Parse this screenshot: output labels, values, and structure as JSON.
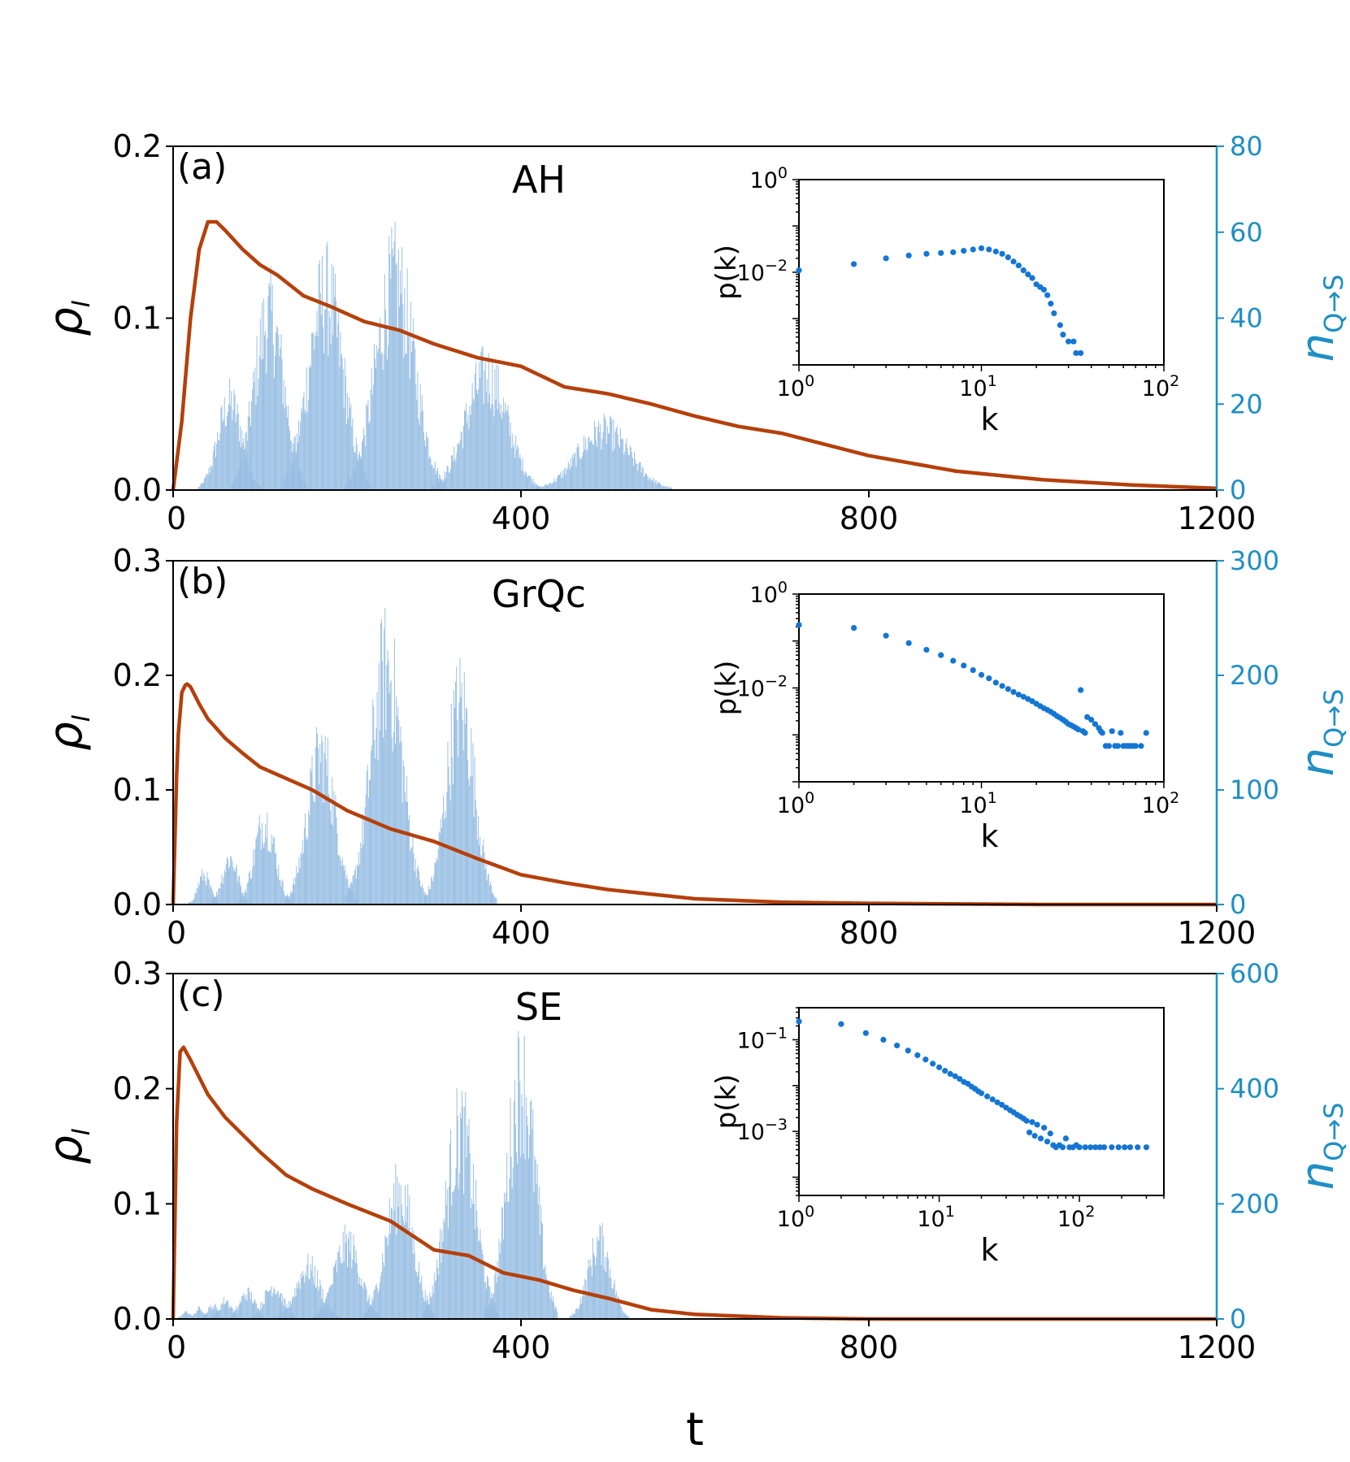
{
  "figure": {
    "xlabel": "t",
    "x_ticks": [
      0,
      400,
      800,
      1200
    ],
    "xlim": [
      0,
      1200
    ]
  },
  "colors": {
    "curve": "#b5400b",
    "bars": "#8db8e0",
    "right_axis": "#1f8fc4",
    "inset_points": "#1476d4"
  },
  "chart_data": [
    {
      "type": "bar",
      "panel_label": "(a)",
      "network": "AH",
      "ylabel_left": "ρ_I",
      "ylabel_right": "n_Q→S",
      "ylim_left": [
        0,
        0.2
      ],
      "yticks_left": [
        "0.0",
        "0.1",
        "0.2"
      ],
      "ylim_right": [
        0,
        80
      ],
      "yticks_right": [
        "0",
        "20",
        "40",
        "60",
        "80"
      ],
      "rho_I": {
        "t": [
          0,
          10,
          20,
          30,
          40,
          50,
          60,
          80,
          100,
          120,
          150,
          180,
          220,
          260,
          300,
          350,
          400,
          450,
          500,
          550,
          600,
          650,
          700,
          800,
          900,
          1000,
          1100,
          1200
        ],
        "value": [
          0.0,
          0.04,
          0.1,
          0.14,
          0.156,
          0.156,
          0.151,
          0.14,
          0.131,
          0.125,
          0.113,
          0.107,
          0.098,
          0.093,
          0.085,
          0.077,
          0.072,
          0.06,
          0.056,
          0.05,
          0.043,
          0.037,
          0.033,
          0.02,
          0.011,
          0.006,
          0.003,
          0.001
        ]
      },
      "n_QS_bursts": [
        {
          "center": 65,
          "width": 14,
          "peak": 25
        },
        {
          "center": 110,
          "width": 17,
          "peak": 50
        },
        {
          "center": 175,
          "width": 20,
          "peak": 56
        },
        {
          "center": 255,
          "width": 22,
          "peak": 60
        },
        {
          "center": 360,
          "width": 24,
          "peak": 33
        },
        {
          "center": 495,
          "width": 30,
          "peak": 17
        }
      ],
      "inset": {
        "type": "scatter",
        "xlabel": "k",
        "ylabel": "p(k)",
        "log_x": true,
        "log_y": true,
        "xlim": [
          1,
          100
        ],
        "ylim": [
          0.0001,
          1
        ],
        "x_ticks": [
          {
            "base": "10",
            "exp": "0"
          },
          {
            "base": "10",
            "exp": "1"
          },
          {
            "base": "10",
            "exp": "2"
          }
        ],
        "y_ticks": [
          {
            "base": "10",
            "exp": "0",
            "value": 1
          },
          {
            "base": "10",
            "exp": "−2",
            "value": 0.01
          }
        ],
        "k": [
          1,
          2,
          3,
          4,
          5,
          6,
          7,
          8,
          9,
          10,
          11,
          12,
          13,
          14,
          15,
          16,
          17,
          18,
          19,
          20,
          21,
          22,
          23,
          24,
          25,
          27,
          28,
          30,
          32,
          33,
          35
        ],
        "p": [
          0.011,
          0.015,
          0.02,
          0.023,
          0.025,
          0.026,
          0.027,
          0.029,
          0.031,
          0.033,
          0.031,
          0.028,
          0.025,
          0.021,
          0.017,
          0.014,
          0.011,
          0.009,
          0.0075,
          0.0055,
          0.0048,
          0.0042,
          0.0032,
          0.0021,
          0.0013,
          0.00072,
          0.00045,
          0.00032,
          0.00032,
          0.00018,
          0.00018
        ]
      }
    },
    {
      "type": "bar",
      "panel_label": "(b)",
      "network": "GrQc",
      "ylabel_left": "ρ_I",
      "ylabel_right": "n_Q→S",
      "ylim_left": [
        0,
        0.3
      ],
      "yticks_left": [
        "0.0",
        "0.1",
        "0.2",
        "0.3"
      ],
      "ylim_right": [
        0,
        300
      ],
      "yticks_right": [
        "0",
        "100",
        "200",
        "300"
      ],
      "rho_I": {
        "t": [
          0,
          5,
          10,
          15,
          20,
          30,
          40,
          60,
          80,
          100,
          130,
          160,
          200,
          250,
          300,
          350,
          400,
          450,
          500,
          600,
          700,
          800,
          1000,
          1200
        ],
        "value": [
          0.0,
          0.14,
          0.185,
          0.193,
          0.19,
          0.175,
          0.162,
          0.145,
          0.132,
          0.12,
          0.11,
          0.1,
          0.082,
          0.066,
          0.055,
          0.04,
          0.026,
          0.019,
          0.013,
          0.005,
          0.002,
          0.001,
          0.0,
          0.0
        ]
      },
      "n_QS_bursts": [
        {
          "center": 35,
          "width": 7,
          "peak": 32
        },
        {
          "center": 65,
          "width": 9,
          "peak": 50
        },
        {
          "center": 105,
          "width": 12,
          "peak": 90
        },
        {
          "center": 170,
          "width": 16,
          "peak": 160
        },
        {
          "center": 245,
          "width": 18,
          "peak": 255
        },
        {
          "center": 330,
          "width": 16,
          "peak": 215
        }
      ],
      "inset": {
        "type": "scatter",
        "xlabel": "k",
        "ylabel": "p(k)",
        "log_x": true,
        "log_y": true,
        "xlim": [
          1,
          100
        ],
        "ylim": [
          0.0001,
          1
        ],
        "x_ticks": [
          {
            "base": "10",
            "exp": "0"
          },
          {
            "base": "10",
            "exp": "1"
          },
          {
            "base": "10",
            "exp": "2"
          }
        ],
        "y_ticks": [
          {
            "base": "10",
            "exp": "0",
            "value": 1
          },
          {
            "base": "10",
            "exp": "−2",
            "value": 0.01
          }
        ],
        "k": [
          1,
          2,
          3,
          4,
          5,
          6,
          7,
          8,
          9,
          10,
          11,
          12,
          13,
          14,
          15,
          16,
          17,
          18,
          19,
          20,
          21,
          22,
          23,
          24,
          25,
          26,
          27,
          28,
          29,
          30,
          31,
          32,
          33,
          34,
          35,
          36,
          37,
          38,
          40,
          42,
          44,
          45,
          46,
          48,
          50,
          52,
          54,
          56,
          58,
          60,
          62,
          64,
          66,
          68,
          70,
          75,
          80
        ],
        "p": [
          0.22,
          0.19,
          0.13,
          0.09,
          0.065,
          0.05,
          0.038,
          0.03,
          0.024,
          0.019,
          0.016,
          0.013,
          0.011,
          0.0095,
          0.0082,
          0.0072,
          0.0065,
          0.0058,
          0.0052,
          0.0046,
          0.0041,
          0.0037,
          0.0034,
          0.0031,
          0.0028,
          0.0025,
          0.0023,
          0.0021,
          0.0019,
          0.0017,
          0.0016,
          0.0015,
          0.0014,
          0.0013,
          0.009,
          0.0012,
          0.0011,
          0.0024,
          0.0021,
          0.0017,
          0.0014,
          0.0012,
          0.0011,
          0.00058,
          0.00058,
          0.0012,
          0.00058,
          0.00058,
          0.0011,
          0.00058,
          0.00058,
          0.00058,
          0.00058,
          0.00058,
          0.00058,
          0.00058,
          0.0011
        ]
      }
    },
    {
      "type": "bar",
      "panel_label": "(c)",
      "network": "SE",
      "ylabel_left": "ρ_I",
      "ylabel_right": "n_Q→S",
      "ylim_left": [
        0,
        0.3
      ],
      "yticks_left": [
        "0.0",
        "0.1",
        "0.2",
        "0.3"
      ],
      "ylim_right": [
        0,
        600
      ],
      "yticks_right": [
        "0",
        "200",
        "400",
        "600"
      ],
      "rho_I": {
        "t": [
          0,
          4,
          8,
          12,
          20,
          30,
          40,
          60,
          80,
          100,
          130,
          160,
          200,
          250,
          300,
          340,
          380,
          420,
          460,
          500,
          550,
          600,
          700,
          800,
          1000,
          1200
        ],
        "value": [
          0.0,
          0.17,
          0.232,
          0.236,
          0.225,
          0.21,
          0.195,
          0.175,
          0.16,
          0.145,
          0.125,
          0.113,
          0.1,
          0.085,
          0.06,
          0.055,
          0.04,
          0.034,
          0.025,
          0.018,
          0.008,
          0.004,
          0.001,
          0.0,
          0.0,
          0.0
        ]
      },
      "n_QS_bursts": [
        {
          "center": 15,
          "width": 5,
          "peak": 15
        },
        {
          "center": 30,
          "width": 5,
          "peak": 22
        },
        {
          "center": 45,
          "width": 6,
          "peak": 28
        },
        {
          "center": 60,
          "width": 7,
          "peak": 40
        },
        {
          "center": 85,
          "width": 9,
          "peak": 55
        },
        {
          "center": 115,
          "width": 11,
          "peak": 70
        },
        {
          "center": 155,
          "width": 14,
          "peak": 110
        },
        {
          "center": 200,
          "width": 15,
          "peak": 160
        },
        {
          "center": 260,
          "width": 16,
          "peak": 270
        },
        {
          "center": 330,
          "width": 17,
          "peak": 400
        },
        {
          "center": 400,
          "width": 16,
          "peak": 510
        },
        {
          "center": 490,
          "width": 13,
          "peak": 165
        }
      ],
      "inset": {
        "type": "scatter",
        "xlabel": "k",
        "ylabel": "p(k)",
        "log_x": true,
        "log_y": true,
        "xlim": [
          1,
          400
        ],
        "ylim": [
          4e-05,
          0.5
        ],
        "x_ticks": [
          {
            "base": "10",
            "exp": "0"
          },
          {
            "base": "10",
            "exp": "1"
          },
          {
            "base": "10",
            "exp": "2"
          }
        ],
        "y_ticks": [
          {
            "base": "10",
            "exp": "−1",
            "value": 0.1
          },
          {
            "base": "10",
            "exp": "−3",
            "value": 0.001
          }
        ],
        "k": [
          1,
          2,
          3,
          4,
          5,
          6,
          7,
          8,
          9,
          10,
          11,
          12,
          13,
          14,
          15,
          16,
          17,
          18,
          19,
          20,
          22,
          24,
          26,
          28,
          30,
          32,
          34,
          36,
          38,
          40,
          42,
          44,
          46,
          48,
          50,
          53,
          56,
          59,
          62,
          65,
          68,
          72,
          76,
          80,
          85,
          90,
          95,
          100,
          110,
          120,
          130,
          140,
          150,
          170,
          190,
          210,
          230,
          260,
          300
        ],
        "p": [
          0.25,
          0.22,
          0.14,
          0.1,
          0.075,
          0.058,
          0.046,
          0.037,
          0.03,
          0.025,
          0.021,
          0.018,
          0.016,
          0.014,
          0.012,
          0.011,
          0.0095,
          0.0085,
          0.0075,
          0.0068,
          0.0058,
          0.005,
          0.0043,
          0.0038,
          0.0033,
          0.0029,
          0.0026,
          0.0023,
          0.0021,
          0.0019,
          0.0017,
          0.00095,
          0.0016,
          0.0008,
          0.0014,
          0.0007,
          0.0012,
          0.0006,
          0.0009,
          0.0005,
          0.00045,
          0.0005,
          0.00045,
          0.0007,
          0.00045,
          0.00045,
          0.0005,
          0.00045,
          0.00045,
          0.00045,
          0.00045,
          0.00045,
          0.00045,
          0.00045,
          0.00045,
          0.00045,
          0.00045,
          0.00045,
          0.00045
        ]
      }
    }
  ]
}
